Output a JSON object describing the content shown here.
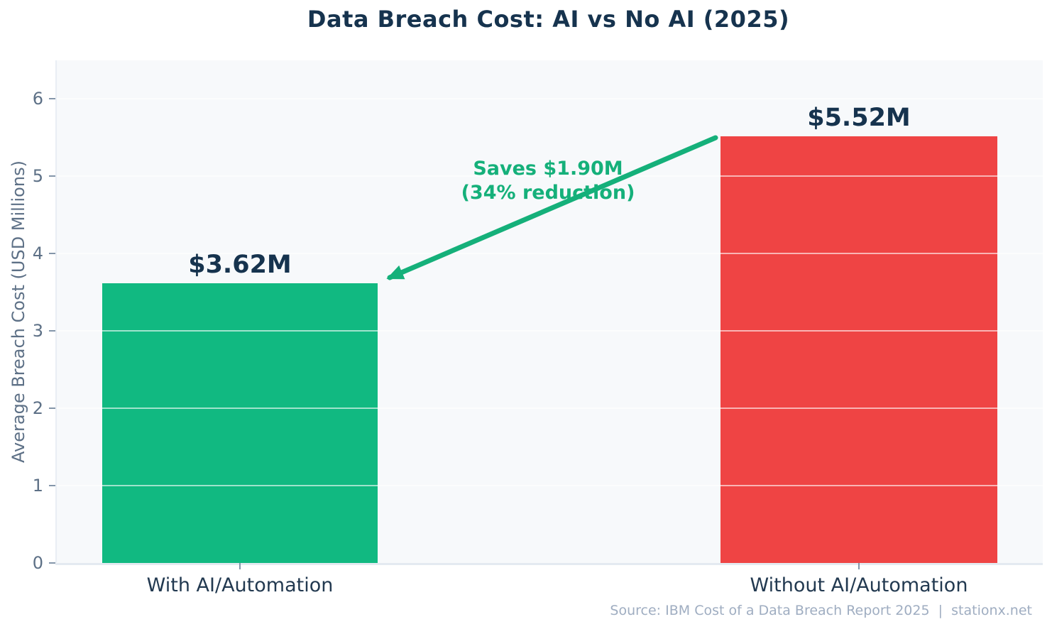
{
  "chart_data": {
    "type": "bar",
    "title": "Data Breach Cost: AI vs No AI (2025)",
    "categories": [
      "With AI/Automation",
      "Without AI/Automation"
    ],
    "values": [
      3.62,
      5.52
    ],
    "bar_labels": [
      "$3.62M",
      "$5.52M"
    ],
    "colors": [
      "#11b981",
      "#ef4444"
    ],
    "ylabel": "Average Breach Cost (USD Millions)",
    "xlabel": "",
    "ylim": [
      0,
      6.5
    ],
    "yticks": [
      0,
      1,
      2,
      3,
      4,
      5,
      6
    ],
    "grid": "horizontal",
    "legend": "none",
    "annotation": {
      "line1": "Saves $1.90M",
      "line2": "(34% reduction)",
      "color": "#15b07a"
    },
    "source": "Source: IBM Cost of a Data Breach Report 2025  |  stationx.net"
  },
  "theme": {
    "title_color": "#16334e",
    "value_label_color": "#16334e",
    "category_label_color": "#223950",
    "tick_label_color": "#5d7086",
    "source_color": "#9fadc1",
    "plot_background": "#f7f9fb",
    "page_background": "#ffffff"
  }
}
